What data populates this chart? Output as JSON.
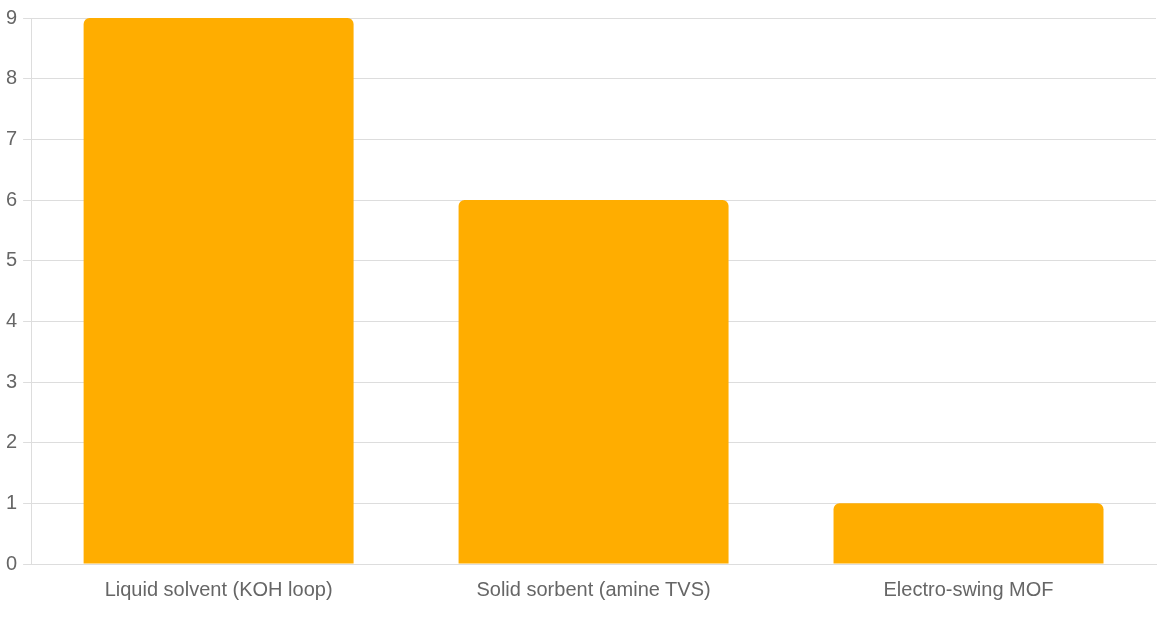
{
  "chart_data": {
    "type": "bar",
    "categories": [
      "Liquid solvent (KOH loop)",
      "Solid sorbent (amine TVS)",
      "Electro-swing MOF"
    ],
    "values": [
      9,
      6,
      1
    ],
    "color": "#ffad00",
    "ylim": [
      0,
      9
    ],
    "yticks": [
      0,
      1,
      2,
      3,
      4,
      5,
      6,
      7,
      8,
      9
    ],
    "grid": "y"
  }
}
